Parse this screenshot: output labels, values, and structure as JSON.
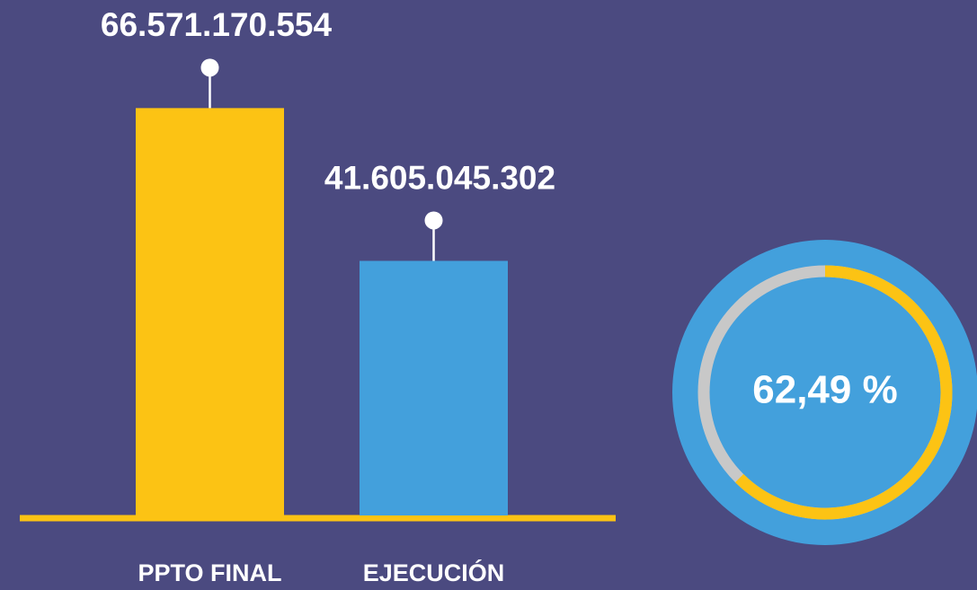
{
  "chart_data": [
    {
      "type": "bar",
      "categories": [
        "PPTO FINAL",
        "EJECUCIÓN"
      ],
      "values": [
        66571170554,
        41605045302
      ],
      "value_labels": [
        "66.571.170.554",
        "41.605.045.302"
      ],
      "colors": [
        "#fcc314",
        "#43a0dc"
      ],
      "ylim": [
        0,
        70000000000
      ]
    },
    {
      "type": "gauge",
      "value": 62.49,
      "value_label": "62,49 %",
      "ylim": [
        0,
        100
      ],
      "color": "#fcc314"
    }
  ]
}
